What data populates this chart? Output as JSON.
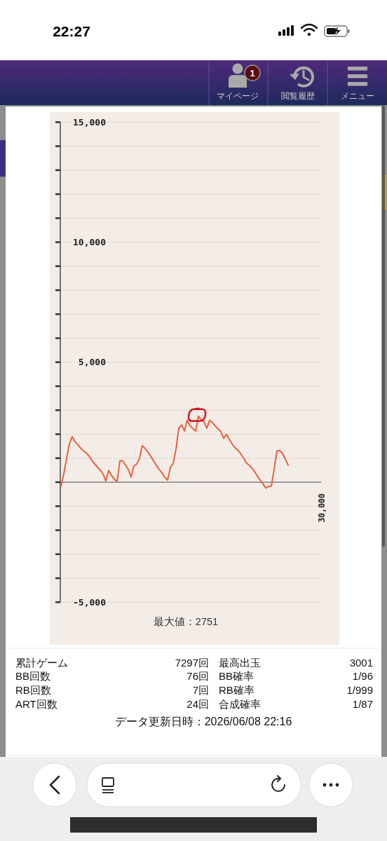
{
  "chart_data": [
    {
      "type": "other",
      "annotations": [
        "22:27",
        "1",
        "マイページ",
        "閲覧履歴",
        "メニュー"
      ]
    },
    {
      "type": "line",
      "categories": [
        null,
        null,
        null,
        null,
        null,
        null,
        null,
        null,
        null,
        null,
        null,
        null,
        null,
        null,
        null,
        null,
        null,
        null,
        null,
        null,
        null,
        null,
        null,
        null,
        null,
        null,
        null,
        null,
        null,
        null,
        null,
        null,
        null,
        null,
        null,
        null,
        null,
        null,
        null,
        null,
        null,
        null,
        null,
        null,
        null,
        null,
        null,
        null,
        null,
        null,
        null,
        null,
        null,
        null,
        null,
        null,
        null,
        null,
        null,
        null,
        null,
        null,
        null,
        null,
        null,
        null,
        null,
        null,
        null,
        null,
        null,
        null,
        null,
        null,
        null,
        null,
        null,
        null,
        null,
        null,
        null,
        null
      ],
      "series": [
        {
          "color": "#e8623f",
          "values": [
            -180,
            350,
            990,
            1600,
            1900,
            1690,
            1560,
            1420,
            1310,
            1220,
            1090,
            910,
            760,
            630,
            500,
            350,
            50,
            490,
            280,
            130,
            20,
            890,
            890,
            710,
            530,
            210,
            680,
            750,
            1000,
            1530,
            1400,
            1250,
            1080,
            890,
            700,
            530,
            390,
            200,
            90,
            620,
            780,
            1370,
            2250,
            2390,
            2140,
            2580,
            2360,
            2230,
            2130,
            2751,
            2600,
            2510,
            2250,
            2580,
            2480,
            2340,
            2220,
            2110,
            1830,
            2000,
            1790,
            1600,
            1450,
            1340,
            1200,
            1020,
            820,
            720,
            600,
            440,
            260,
            90,
            -60,
            -240,
            -180,
            -160,
            540,
            1300,
            1320,
            1190,
            960,
            710
          ]
        }
      ],
      "ylim": [
        -5000,
        15000
      ],
      "yticks": [
        {
          "value": -5000,
          "label": "-5,000"
        },
        {
          "value": -4000,
          "label": null
        },
        {
          "value": -3000,
          "label": null
        },
        {
          "value": -2000,
          "label": null
        },
        {
          "value": -1000,
          "label": null
        },
        {
          "value": 0,
          "label": null
        },
        {
          "value": 1000,
          "label": null
        },
        {
          "value": 2000,
          "label": null
        },
        {
          "value": 3000,
          "label": null
        },
        {
          "value": 4000,
          "label": null
        },
        {
          "value": 5000,
          "label": "5,000"
        },
        {
          "value": 6000,
          "label": null
        },
        {
          "value": 7000,
          "label": null
        },
        {
          "value": 8000,
          "label": null
        },
        {
          "value": 9000,
          "label": null
        },
        {
          "value": 10000,
          "label": "10,000"
        },
        {
          "value": 11000,
          "label": null
        },
        {
          "value": 12000,
          "label": null
        },
        {
          "value": 13000,
          "label": null
        },
        {
          "value": 14000,
          "label": null
        },
        {
          "value": 15000,
          "label": "15,000"
        }
      ],
      "grid": "y",
      "ref_lines": [
        {
          "axis": "y",
          "value": 0,
          "color": "#858585"
        }
      ],
      "annotations": [
        "30,000",
        "最大値：2751"
      ]
    },
    {
      "type": "other",
      "annotations": [
        "累計ゲーム",
        "7297回",
        "最高出玉",
        "3001",
        "BB回数",
        "76回",
        "BB確率",
        "1/96",
        "RB回数",
        "7回",
        "RB確率",
        "1/999",
        "ART回数",
        "24回",
        "合成確率",
        "1/87",
        "データ更新日時：2026/06/08 22:16"
      ]
    }
  ]
}
